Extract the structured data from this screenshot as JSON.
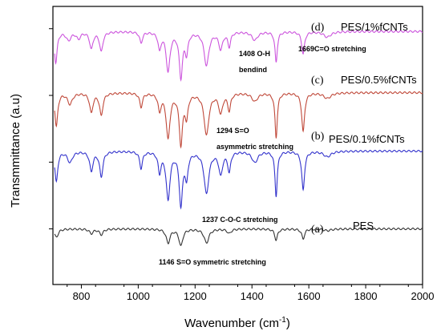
{
  "chart_data": {
    "type": "line",
    "xlabel": "Wavenumber (cm",
    "xlabel_sup": "-1",
    "xlabel_close": ")",
    "ylabel": "Transmmittance (a.u)",
    "xlim": [
      700,
      2000
    ],
    "xticks": [
      800,
      1000,
      1200,
      1400,
      1600,
      1800,
      2000
    ],
    "grid": false,
    "series": [
      {
        "letter": "(d)",
        "name": "PES/1%fCNTs",
        "color": "#cc55dd",
        "baseline": 4.55,
        "bands": [
          [
            710,
            0.55,
            6
          ],
          [
            755,
            0.15,
            10
          ],
          [
            790,
            0.12,
            8
          ],
          [
            835,
            0.3,
            7
          ],
          [
            870,
            0.35,
            7
          ],
          [
            1010,
            0.2,
            6
          ],
          [
            1075,
            0.3,
            6
          ],
          [
            1105,
            0.7,
            8
          ],
          [
            1150,
            0.8,
            7
          ],
          [
            1170,
            0.35,
            6
          ],
          [
            1240,
            0.6,
            10
          ],
          [
            1290,
            0.3,
            8
          ],
          [
            1320,
            0.25,
            6
          ],
          [
            1410,
            0.15,
            12
          ],
          [
            1485,
            0.55,
            5
          ],
          [
            1580,
            0.4,
            6
          ],
          [
            1665,
            0.1,
            15
          ]
        ]
      },
      {
        "letter": "(c)",
        "name": "PES/0.5%fCNTs",
        "color": "#c0493a",
        "baseline": 3.45,
        "bands": [
          [
            712,
            0.6,
            6
          ],
          [
            760,
            0.2,
            10
          ],
          [
            835,
            0.35,
            7
          ],
          [
            870,
            0.4,
            7
          ],
          [
            1010,
            0.25,
            6
          ],
          [
            1075,
            0.3,
            6
          ],
          [
            1105,
            0.8,
            8
          ],
          [
            1150,
            0.9,
            7
          ],
          [
            1170,
            0.4,
            6
          ],
          [
            1240,
            0.75,
            10
          ],
          [
            1290,
            0.35,
            8
          ],
          [
            1320,
            0.3,
            6
          ],
          [
            1410,
            0.15,
            12
          ],
          [
            1485,
            0.8,
            5
          ],
          [
            1580,
            0.7,
            6
          ],
          [
            1665,
            0.1,
            15
          ]
        ]
      },
      {
        "letter": "(b)",
        "name": "PES/0.1%fCNTs",
        "color": "#3333cc",
        "baseline": 2.4,
        "bands": [
          [
            712,
            0.55,
            6
          ],
          [
            760,
            0.2,
            10
          ],
          [
            835,
            0.35,
            7
          ],
          [
            870,
            0.45,
            7
          ],
          [
            1010,
            0.3,
            6
          ],
          [
            1075,
            0.35,
            6
          ],
          [
            1105,
            0.85,
            8
          ],
          [
            1150,
            0.95,
            7
          ],
          [
            1170,
            0.45,
            6
          ],
          [
            1240,
            0.75,
            10
          ],
          [
            1290,
            0.4,
            8
          ],
          [
            1320,
            0.35,
            6
          ],
          [
            1410,
            0.2,
            12
          ],
          [
            1485,
            0.8,
            5
          ],
          [
            1580,
            0.7,
            6
          ],
          [
            1665,
            0.1,
            15
          ]
        ]
      },
      {
        "letter": "(a)",
        "name": "PES",
        "color": "#333333",
        "baseline": 1.0,
        "bands": [
          [
            712,
            0.15,
            8
          ],
          [
            835,
            0.08,
            8
          ],
          [
            870,
            0.1,
            8
          ],
          [
            1105,
            0.25,
            8
          ],
          [
            1150,
            0.3,
            8
          ],
          [
            1240,
            0.25,
            10
          ],
          [
            1320,
            0.08,
            8
          ],
          [
            1485,
            0.2,
            6
          ],
          [
            1580,
            0.18,
            6
          ],
          [
            1665,
            0.03,
            15
          ]
        ]
      }
    ],
    "ylim": [
      0,
      5
    ],
    "yticks": [
      1,
      2.2,
      3.4,
      4.6
    ],
    "annotations": [
      {
        "lines": [
          "1408 O-H",
          "bendind"
        ],
        "x": 1408
      },
      {
        "lines": [
          "1669C=O stretching"
        ],
        "x": 1669
      },
      {
        "lines": [
          "1294 S=O",
          "asymmetric stretching"
        ],
        "x": 1294
      },
      {
        "lines": [
          "1237 C-O-C stretching"
        ],
        "x": 1237
      },
      {
        "lines": [
          "1146 S=O symmetric stretching"
        ],
        "x": 1146
      }
    ]
  }
}
